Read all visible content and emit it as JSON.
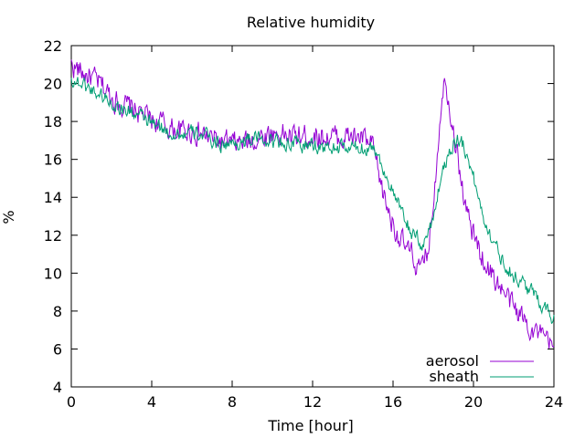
{
  "chart_data": {
    "type": "line",
    "title": "Relative humidity",
    "xlabel": "Time [hour]",
    "ylabel": "%",
    "xlim": [
      0,
      24
    ],
    "ylim": [
      4,
      22
    ],
    "xticks": [
      0,
      4,
      8,
      12,
      16,
      20,
      24
    ],
    "yticks": [
      4,
      6,
      8,
      10,
      12,
      14,
      16,
      18,
      20,
      22
    ],
    "grid": false,
    "legend_position": "bottom-right",
    "series": [
      {
        "name": "aerosol",
        "color": "#9400d3",
        "points": [
          [
            0.0,
            21.0
          ],
          [
            0.5,
            20.6
          ],
          [
            1.0,
            20.3
          ],
          [
            1.5,
            19.9
          ],
          [
            2.0,
            19.3
          ],
          [
            2.5,
            18.9
          ],
          [
            3.0,
            18.7
          ],
          [
            3.5,
            18.4
          ],
          [
            4.0,
            18.1
          ],
          [
            4.5,
            17.9
          ],
          [
            5.0,
            17.6
          ],
          [
            5.5,
            17.5
          ],
          [
            6.0,
            17.5
          ],
          [
            6.5,
            17.3
          ],
          [
            7.0,
            17.1
          ],
          [
            7.5,
            16.9
          ],
          [
            8.0,
            16.8
          ],
          [
            8.5,
            16.9
          ],
          [
            9.0,
            17.0
          ],
          [
            9.5,
            17.2
          ],
          [
            10.0,
            17.4
          ],
          [
            10.5,
            17.3
          ],
          [
            11.0,
            17.2
          ],
          [
            11.5,
            17.2
          ],
          [
            12.0,
            17.3
          ],
          [
            12.5,
            17.2
          ],
          [
            13.0,
            17.2
          ],
          [
            13.5,
            17.1
          ],
          [
            14.0,
            17.2
          ],
          [
            14.5,
            17.1
          ],
          [
            15.0,
            16.6
          ],
          [
            15.5,
            14.2
          ],
          [
            16.0,
            12.6
          ],
          [
            16.5,
            11.5
          ],
          [
            17.0,
            10.8
          ],
          [
            17.4,
            10.0
          ],
          [
            17.8,
            11.6
          ],
          [
            18.1,
            15.0
          ],
          [
            18.4,
            19.2
          ],
          [
            18.6,
            20.3
          ],
          [
            18.8,
            19.0
          ],
          [
            19.2,
            16.2
          ],
          [
            19.6,
            13.5
          ],
          [
            20.0,
            12.0
          ],
          [
            20.5,
            10.7
          ],
          [
            21.0,
            9.8
          ],
          [
            21.5,
            9.0
          ],
          [
            22.0,
            8.2
          ],
          [
            22.5,
            7.6
          ],
          [
            23.0,
            7.0
          ],
          [
            23.5,
            6.5
          ],
          [
            24.0,
            6.0
          ]
        ]
      },
      {
        "name": "sheath",
        "color": "#009e73",
        "points": [
          [
            0.0,
            20.2
          ],
          [
            0.5,
            20.0
          ],
          [
            1.0,
            19.7
          ],
          [
            1.5,
            19.4
          ],
          [
            2.0,
            19.0
          ],
          [
            2.5,
            18.7
          ],
          [
            3.0,
            18.5
          ],
          [
            3.5,
            18.2
          ],
          [
            4.0,
            17.9
          ],
          [
            4.5,
            17.6
          ],
          [
            5.0,
            17.4
          ],
          [
            5.5,
            17.3
          ],
          [
            6.0,
            17.4
          ],
          [
            6.5,
            17.3
          ],
          [
            7.0,
            17.0
          ],
          [
            7.5,
            16.8
          ],
          [
            8.0,
            16.8
          ],
          [
            8.5,
            16.9
          ],
          [
            9.0,
            17.1
          ],
          [
            9.5,
            17.1
          ],
          [
            10.0,
            17.0
          ],
          [
            10.5,
            16.9
          ],
          [
            11.0,
            16.8
          ],
          [
            11.5,
            16.7
          ],
          [
            12.0,
            16.8
          ],
          [
            12.5,
            16.6
          ],
          [
            13.0,
            16.6
          ],
          [
            13.5,
            16.6
          ],
          [
            14.0,
            16.6
          ],
          [
            14.5,
            16.6
          ],
          [
            15.0,
            16.7
          ],
          [
            15.5,
            15.6
          ],
          [
            16.0,
            14.2
          ],
          [
            16.5,
            13.0
          ],
          [
            17.0,
            12.0
          ],
          [
            17.5,
            11.4
          ],
          [
            18.0,
            13.0
          ],
          [
            18.5,
            15.6
          ],
          [
            19.0,
            16.9
          ],
          [
            19.3,
            17.1
          ],
          [
            19.7,
            16.3
          ],
          [
            20.0,
            15.0
          ],
          [
            20.5,
            13.0
          ],
          [
            21.0,
            11.6
          ],
          [
            21.5,
            10.6
          ],
          [
            22.0,
            9.9
          ],
          [
            22.5,
            9.4
          ],
          [
            23.0,
            8.9
          ],
          [
            23.5,
            8.3
          ],
          [
            24.0,
            7.6
          ]
        ]
      }
    ]
  }
}
